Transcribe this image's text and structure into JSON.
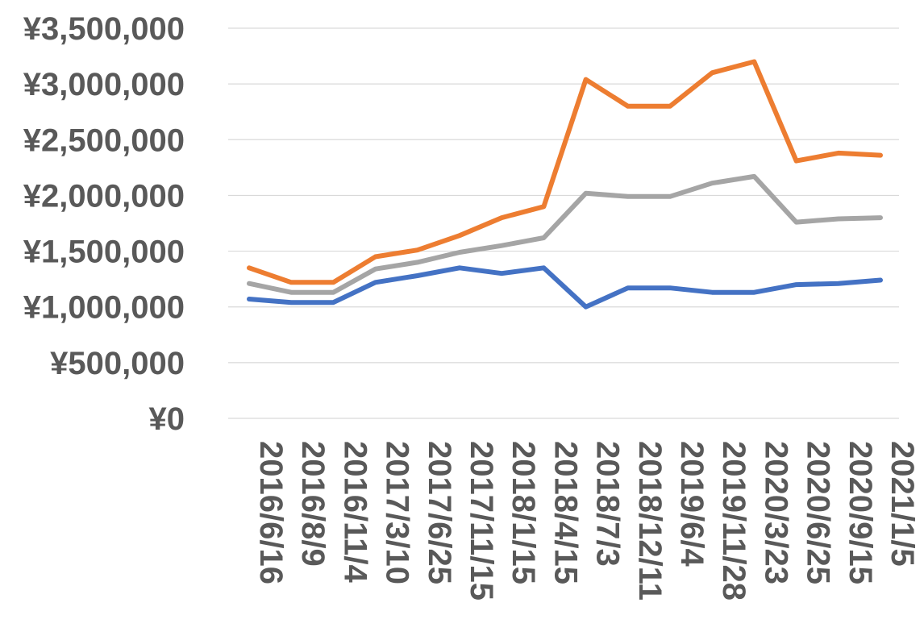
{
  "chart_data": {
    "type": "line",
    "title": "",
    "xlabel": "",
    "ylabel": "",
    "x": [
      "2016/6/16",
      "2016/8/9",
      "2016/11/4",
      "2017/3/10",
      "2017/6/25",
      "2017/11/15",
      "2018/1/15",
      "2018/4/15",
      "2018/7/3",
      "2018/12/11",
      "2019/6/4",
      "2019/11/28",
      "2020/3/23",
      "2020/6/25",
      "2020/9/15",
      "2021/1/5"
    ],
    "ylim": [
      0,
      3500000
    ],
    "yticks": [
      0,
      500000,
      1000000,
      1500000,
      2000000,
      2500000,
      3000000,
      3500000
    ],
    "ytick_labels": [
      "¥0",
      "¥500,000",
      "¥1,000,000",
      "¥1,500,000",
      "¥2,000,000",
      "¥2,500,000",
      "¥3,000,000",
      "¥3,500,000"
    ],
    "grid": true,
    "legend": "none",
    "series": [
      {
        "color": "#4472C4",
        "values": [
          1070000,
          1040000,
          1040000,
          1220000,
          1280000,
          1350000,
          1300000,
          1350000,
          1000000,
          1170000,
          1170000,
          1130000,
          1130000,
          1200000,
          1210000,
          1240000
        ]
      },
      {
        "color": "#ED7D31",
        "values": [
          1350000,
          1220000,
          1220000,
          1450000,
          1510000,
          1640000,
          1800000,
          1900000,
          3040000,
          2800000,
          2800000,
          3100000,
          3200000,
          2310000,
          2380000,
          2360000
        ]
      },
      {
        "color": "#A5A5A5",
        "values": [
          1210000,
          1130000,
          1130000,
          1340000,
          1400000,
          1490000,
          1550000,
          1620000,
          2020000,
          1990000,
          1990000,
          2110000,
          2170000,
          1760000,
          1790000,
          1800000
        ]
      }
    ]
  }
}
